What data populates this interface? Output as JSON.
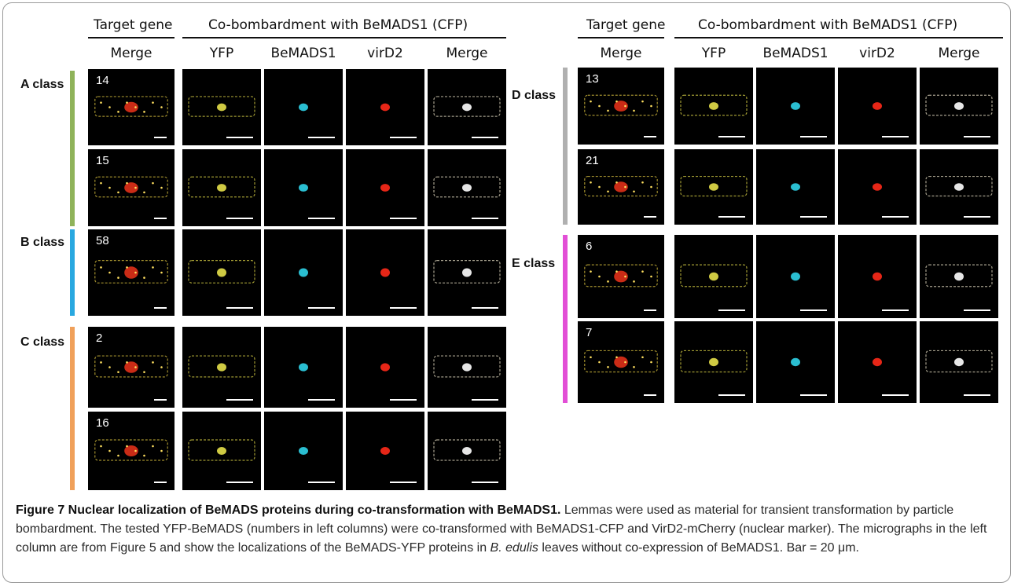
{
  "headers": {
    "target_gene": "Target gene",
    "co_bombardment": "Co-bombardment with BeMADS1 (CFP)",
    "columns": [
      "Merge",
      "YFP",
      "BeMADS1",
      "virD2",
      "Merge"
    ]
  },
  "classes": {
    "A": {
      "label": "A class",
      "color": "#8fb35a",
      "rows": [
        "14",
        "15"
      ]
    },
    "B": {
      "label": "B class",
      "color": "#29a8e0",
      "rows": [
        "58"
      ]
    },
    "C": {
      "label": "C class",
      "color": "#f0a05a",
      "rows": [
        "2",
        "16"
      ]
    },
    "D": {
      "label": "D class",
      "color": "#b0b0b0",
      "rows": [
        "13",
        "21"
      ]
    },
    "E": {
      "label": "E class",
      "color": "#e24fd6",
      "rows": [
        "6",
        "7"
      ]
    }
  },
  "caption": {
    "title": "Figure 7 Nuclear localization of BeMADS proteins during co-transformation with BeMADS1.",
    "text1": " Lemmas were used as material for transient transformation by particle bombardment. The tested YFP-BeMADS (numbers in left columns) were co-transformed with BeMADS1-CFP and VirD2-mCherry (nuclear marker). The micrographs in the left column are from Figure 5 and show the localizations of the BeMADS-YFP proteins in ",
    "species": "B. edulis",
    "text2": " leaves without co-expression of BeMADS1. Bar = 20 μm."
  }
}
